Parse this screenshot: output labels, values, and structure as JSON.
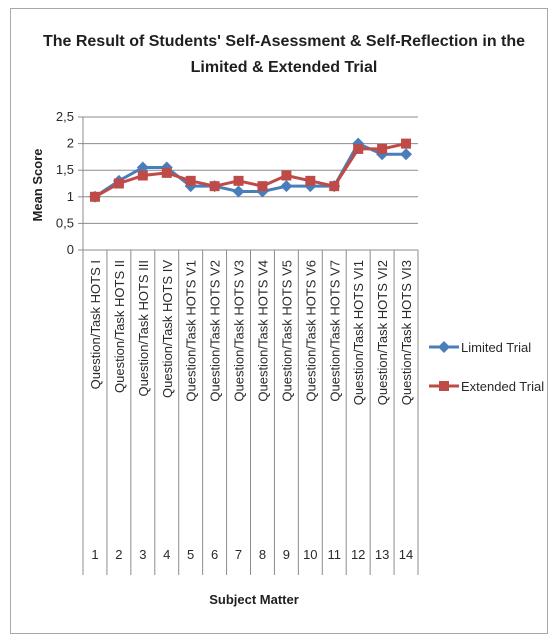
{
  "chart_data": {
    "type": "line",
    "title_line1": "The Result of Students' Self-Asessment & Self-Reflection in the",
    "title_line2": "Limited & Extended Trial",
    "xlabel": "Subject Matter",
    "ylabel": "Mean Score",
    "ylim": [
      0,
      2.5
    ],
    "yticks": [
      "0",
      "0,5",
      "1",
      "1,5",
      "2",
      "2,5"
    ],
    "grid": true,
    "legend_position": "right",
    "categories": [
      "Question/Task HOTS I",
      "Question/Task HOTS II",
      "Question/Task HOTS III",
      "Question/Task HOTS IV",
      "Question/Task HOTS V1",
      "Question/Task HOTS V2",
      "Question/Task HOTS V3",
      "Question/Task HOTS V4",
      "Question/Task HOTS V5",
      "Question/Task HOTS V6",
      "Question/Task HOTS V7",
      "Question/Task HOTS VI1",
      "Question/Task HOTS VI2",
      "Question/Task HOTS VI3"
    ],
    "category_numbers": [
      "1",
      "2",
      "3",
      "4",
      "5",
      "6",
      "7",
      "8",
      "9",
      "10",
      "11",
      "12",
      "13",
      "14"
    ],
    "series": [
      {
        "name": "Limited Trial",
        "color": "#4a7ebb",
        "marker": "diamond",
        "values": [
          1.0,
          1.3,
          1.55,
          1.55,
          1.2,
          1.2,
          1.1,
          1.1,
          1.2,
          1.2,
          1.2,
          2.0,
          1.8,
          1.8
        ]
      },
      {
        "name": "Extended Trial",
        "color": "#be4b48",
        "marker": "square",
        "values": [
          1.0,
          1.25,
          1.4,
          1.45,
          1.3,
          1.2,
          1.3,
          1.2,
          1.4,
          1.3,
          1.2,
          1.9,
          1.9,
          2.0
        ]
      }
    ]
  }
}
